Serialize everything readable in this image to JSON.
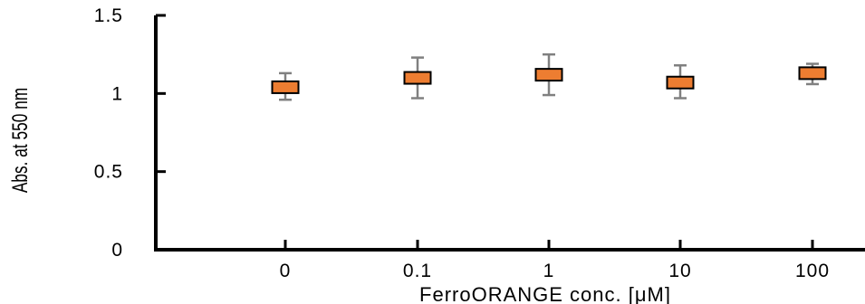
{
  "chart_data": {
    "type": "scatter",
    "title": "",
    "xlabel": "FerroORANGE conc. [μM]",
    "ylabel": "Abs. at 550 nm",
    "categories": [
      "0",
      "0.1",
      "1",
      "10",
      "100"
    ],
    "series": [
      {
        "values": [
          1.04,
          1.1,
          1.12,
          1.07,
          1.13
        ],
        "error_low": [
          0.96,
          0.97,
          0.99,
          0.97,
          1.06
        ],
        "error_high": [
          1.13,
          1.23,
          1.25,
          1.18,
          1.19
        ],
        "marker": "square",
        "color": "#ED7D31"
      }
    ],
    "ylim": [
      0,
      1.5
    ],
    "yticks": [
      0,
      0.5,
      1,
      1.5
    ],
    "ytick_labels": [
      "0",
      "0.5",
      "1",
      "1.5"
    ],
    "grid": false,
    "error_bar_color": "#808080",
    "marker_edge_color": "#000000"
  }
}
